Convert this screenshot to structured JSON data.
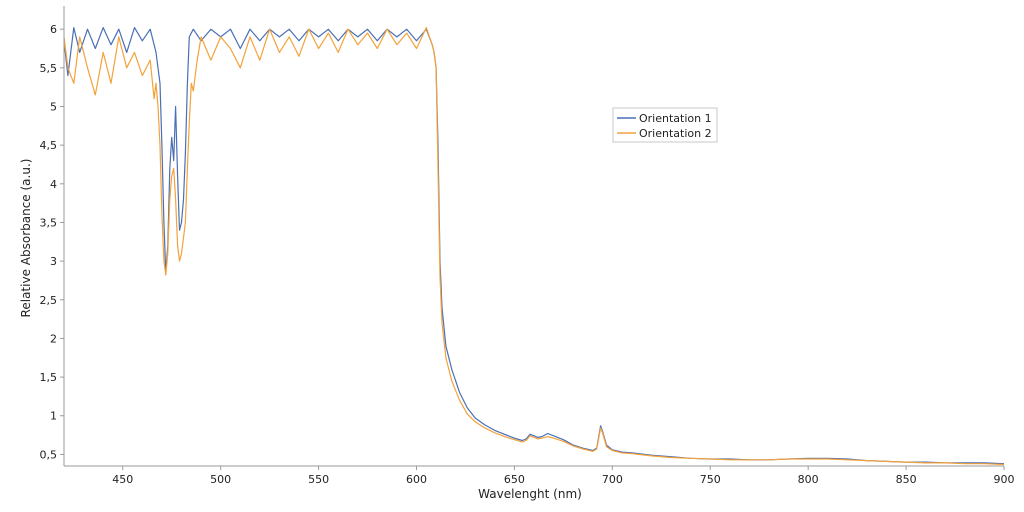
{
  "chart_data": {
    "type": "line",
    "xlabel": "Wavelenght (nm)",
    "ylabel": "Relative Absorbance (a.u.)",
    "xlim": [
      420,
      900
    ],
    "ylim": [
      0.35,
      6.3
    ],
    "x_ticks": [
      "450",
      "500",
      "550",
      "600",
      "650",
      "700",
      "750",
      "800",
      "850",
      "900"
    ],
    "x_tick_values": [
      450,
      500,
      550,
      600,
      650,
      700,
      750,
      800,
      850,
      900
    ],
    "y_ticks": [
      "0,5",
      "1",
      "1,5",
      "2",
      "2,5",
      "3",
      "3,5",
      "4",
      "4,5",
      "5",
      "5,5",
      "6"
    ],
    "y_tick_values": [
      0.5,
      1,
      1.5,
      2,
      2.5,
      3,
      3.5,
      4,
      4.5,
      5,
      5.5,
      6
    ],
    "grid": false,
    "legend_position": "top-right",
    "series": [
      {
        "name": "Orientation 1",
        "color": "#4a6fb5",
        "points": [
          [
            420,
            5.85
          ],
          [
            422,
            5.4
          ],
          [
            425,
            6.02
          ],
          [
            428,
            5.7
          ],
          [
            432,
            6.0
          ],
          [
            436,
            5.75
          ],
          [
            440,
            6.02
          ],
          [
            444,
            5.8
          ],
          [
            448,
            6.0
          ],
          [
            452,
            5.7
          ],
          [
            456,
            6.02
          ],
          [
            460,
            5.85
          ],
          [
            464,
            6.0
          ],
          [
            467,
            5.7
          ],
          [
            469,
            5.3
          ],
          [
            470,
            4.5
          ],
          [
            471,
            3.5
          ],
          [
            472,
            2.85
          ],
          [
            473,
            3.2
          ],
          [
            474,
            4.2
          ],
          [
            475,
            4.6
          ],
          [
            476,
            4.3
          ],
          [
            477,
            5.0
          ],
          [
            478,
            4.1
          ],
          [
            479,
            3.4
          ],
          [
            480,
            3.5
          ],
          [
            481,
            3.8
          ],
          [
            482,
            4.4
          ],
          [
            483,
            5.3
          ],
          [
            484,
            5.9
          ],
          [
            486,
            6.0
          ],
          [
            490,
            5.85
          ],
          [
            495,
            6.0
          ],
          [
            500,
            5.9
          ],
          [
            505,
            6.0
          ],
          [
            510,
            5.75
          ],
          [
            515,
            6.0
          ],
          [
            520,
            5.85
          ],
          [
            525,
            6.0
          ],
          [
            530,
            5.9
          ],
          [
            535,
            6.0
          ],
          [
            540,
            5.85
          ],
          [
            545,
            6.0
          ],
          [
            550,
            5.9
          ],
          [
            555,
            6.0
          ],
          [
            560,
            5.85
          ],
          [
            565,
            6.0
          ],
          [
            570,
            5.9
          ],
          [
            575,
            6.0
          ],
          [
            580,
            5.85
          ],
          [
            585,
            6.0
          ],
          [
            590,
            5.9
          ],
          [
            595,
            6.0
          ],
          [
            600,
            5.85
          ],
          [
            605,
            6.0
          ],
          [
            608,
            5.8
          ],
          [
            609,
            5.7
          ],
          [
            610,
            5.5
          ],
          [
            611,
            4.5
          ],
          [
            612,
            3.0
          ],
          [
            613,
            2.4
          ],
          [
            615,
            1.9
          ],
          [
            618,
            1.6
          ],
          [
            622,
            1.3
          ],
          [
            626,
            1.1
          ],
          [
            630,
            0.97
          ],
          [
            635,
            0.88
          ],
          [
            640,
            0.81
          ],
          [
            645,
            0.76
          ],
          [
            650,
            0.71
          ],
          [
            654,
            0.68
          ],
          [
            656,
            0.7
          ],
          [
            658,
            0.76
          ],
          [
            660,
            0.74
          ],
          [
            662,
            0.72
          ],
          [
            664,
            0.73
          ],
          [
            667,
            0.77
          ],
          [
            670,
            0.74
          ],
          [
            675,
            0.69
          ],
          [
            680,
            0.62
          ],
          [
            685,
            0.58
          ],
          [
            690,
            0.55
          ],
          [
            692,
            0.58
          ],
          [
            693,
            0.72
          ],
          [
            694,
            0.87
          ],
          [
            695,
            0.8
          ],
          [
            697,
            0.62
          ],
          [
            700,
            0.56
          ],
          [
            705,
            0.53
          ],
          [
            710,
            0.52
          ],
          [
            720,
            0.49
          ],
          [
            730,
            0.47
          ],
          [
            740,
            0.45
          ],
          [
            750,
            0.44
          ],
          [
            760,
            0.44
          ],
          [
            770,
            0.43
          ],
          [
            780,
            0.43
          ],
          [
            790,
            0.44
          ],
          [
            800,
            0.45
          ],
          [
            810,
            0.45
          ],
          [
            820,
            0.44
          ],
          [
            830,
            0.42
          ],
          [
            840,
            0.41
          ],
          [
            850,
            0.4
          ],
          [
            860,
            0.4
          ],
          [
            870,
            0.39
          ],
          [
            880,
            0.39
          ],
          [
            890,
            0.39
          ],
          [
            900,
            0.38
          ]
        ]
      },
      {
        "name": "Orientation 2",
        "color": "#f4a23a",
        "points": [
          [
            420,
            5.9
          ],
          [
            422,
            5.5
          ],
          [
            425,
            5.3
          ],
          [
            428,
            5.9
          ],
          [
            432,
            5.5
          ],
          [
            436,
            5.15
          ],
          [
            440,
            5.7
          ],
          [
            444,
            5.3
          ],
          [
            448,
            5.9
          ],
          [
            452,
            5.5
          ],
          [
            456,
            5.7
          ],
          [
            460,
            5.4
          ],
          [
            464,
            5.6
          ],
          [
            466,
            5.1
          ],
          [
            467,
            5.3
          ],
          [
            468,
            5.0
          ],
          [
            469,
            4.5
          ],
          [
            470,
            3.6
          ],
          [
            471,
            3.0
          ],
          [
            472,
            2.82
          ],
          [
            473,
            3.1
          ],
          [
            474,
            3.8
          ],
          [
            475,
            4.1
          ],
          [
            476,
            4.2
          ],
          [
            477,
            3.8
          ],
          [
            478,
            3.2
          ],
          [
            479,
            3.0
          ],
          [
            480,
            3.1
          ],
          [
            482,
            3.5
          ],
          [
            483,
            4.2
          ],
          [
            484,
            4.8
          ],
          [
            485,
            5.3
          ],
          [
            486,
            5.2
          ],
          [
            488,
            5.6
          ],
          [
            490,
            5.9
          ],
          [
            495,
            5.6
          ],
          [
            500,
            5.9
          ],
          [
            505,
            5.75
          ],
          [
            510,
            5.5
          ],
          [
            515,
            5.9
          ],
          [
            520,
            5.6
          ],
          [
            525,
            6.0
          ],
          [
            530,
            5.7
          ],
          [
            535,
            5.9
          ],
          [
            540,
            5.65
          ],
          [
            545,
            6.0
          ],
          [
            550,
            5.75
          ],
          [
            555,
            5.95
          ],
          [
            560,
            5.7
          ],
          [
            565,
            6.0
          ],
          [
            570,
            5.8
          ],
          [
            575,
            5.95
          ],
          [
            580,
            5.75
          ],
          [
            585,
            6.0
          ],
          [
            590,
            5.8
          ],
          [
            595,
            5.95
          ],
          [
            600,
            5.75
          ],
          [
            605,
            6.02
          ],
          [
            608,
            5.8
          ],
          [
            609,
            5.7
          ],
          [
            610,
            5.5
          ],
          [
            611,
            4.2
          ],
          [
            612,
            2.8
          ],
          [
            613,
            2.2
          ],
          [
            615,
            1.75
          ],
          [
            618,
            1.45
          ],
          [
            622,
            1.2
          ],
          [
            626,
            1.02
          ],
          [
            630,
            0.92
          ],
          [
            635,
            0.84
          ],
          [
            640,
            0.78
          ],
          [
            645,
            0.73
          ],
          [
            650,
            0.69
          ],
          [
            654,
            0.66
          ],
          [
            656,
            0.68
          ],
          [
            658,
            0.74
          ],
          [
            660,
            0.72
          ],
          [
            662,
            0.7
          ],
          [
            664,
            0.71
          ],
          [
            667,
            0.73
          ],
          [
            670,
            0.71
          ],
          [
            675,
            0.67
          ],
          [
            680,
            0.61
          ],
          [
            685,
            0.57
          ],
          [
            690,
            0.54
          ],
          [
            692,
            0.57
          ],
          [
            693,
            0.7
          ],
          [
            694,
            0.84
          ],
          [
            695,
            0.78
          ],
          [
            697,
            0.6
          ],
          [
            700,
            0.55
          ],
          [
            705,
            0.52
          ],
          [
            710,
            0.51
          ],
          [
            720,
            0.48
          ],
          [
            730,
            0.46
          ],
          [
            740,
            0.45
          ],
          [
            750,
            0.44
          ],
          [
            760,
            0.43
          ],
          [
            770,
            0.43
          ],
          [
            780,
            0.43
          ],
          [
            790,
            0.44
          ],
          [
            800,
            0.44
          ],
          [
            810,
            0.44
          ],
          [
            820,
            0.43
          ],
          [
            830,
            0.42
          ],
          [
            840,
            0.41
          ],
          [
            850,
            0.4
          ],
          [
            860,
            0.39
          ],
          [
            870,
            0.39
          ],
          [
            880,
            0.38
          ],
          [
            890,
            0.38
          ],
          [
            900,
            0.37
          ]
        ]
      }
    ]
  }
}
